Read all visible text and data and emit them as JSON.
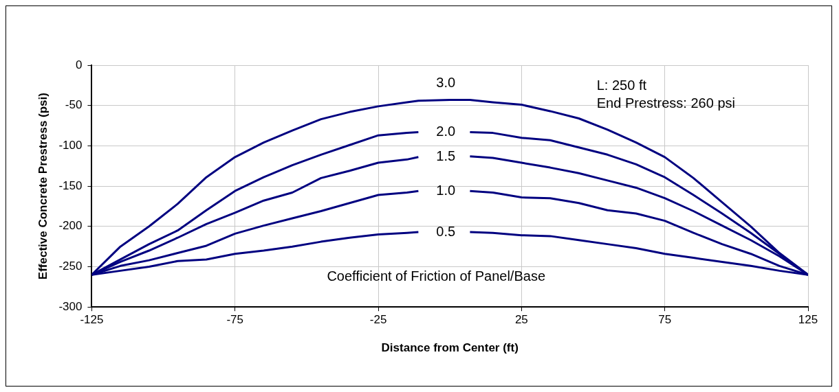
{
  "chart_data": {
    "type": "line",
    "xlabel": "Distance from Center (ft)",
    "ylabel": "Effective Concrete Prestress (psi)",
    "legend_title": "Coefficient of Friction of Panel/Base",
    "annotations": [
      "L: 250 ft",
      "End Prestress: 260 psi"
    ],
    "x": [
      -125,
      -115,
      -105,
      -95,
      -85,
      -75,
      -65,
      -55,
      -45,
      -35,
      -25,
      -15,
      -11,
      0,
      7,
      15,
      25,
      35,
      45,
      55,
      65,
      75,
      85,
      95,
      105,
      115,
      125
    ],
    "series": [
      {
        "name": "3.0",
        "color": "#000080",
        "values": [
          -260,
          -225,
          -200,
          -172,
          -139,
          -114,
          -96,
          -81,
          -67,
          -58,
          -51,
          -46,
          -44,
          -43,
          -43,
          -46,
          -49,
          -57,
          -66,
          -80,
          -96,
          -114,
          -140,
          -170,
          -200,
          -233,
          -260
        ]
      },
      {
        "name": "2.0",
        "color": "#000080",
        "values": [
          -260,
          -241,
          -222,
          -205,
          -180,
          -156,
          -139,
          -124,
          -111,
          -99,
          -87,
          -84,
          -83,
          null,
          -83,
          -84,
          -90,
          -93,
          -102,
          -111,
          -123,
          -139,
          -161,
          -184,
          -208,
          -234,
          -260
        ]
      },
      {
        "name": "1.5",
        "color": "#000080",
        "values": [
          -260,
          -244,
          -230,
          -214,
          -197,
          -183,
          -168,
          -158,
          -140,
          -131,
          -121,
          -117,
          -114,
          null,
          -113,
          -115,
          -121,
          -127,
          -134,
          -143,
          -152,
          -165,
          -181,
          -199,
          -217,
          -237,
          -260
        ]
      },
      {
        "name": "1.0",
        "color": "#000080",
        "values": [
          -260,
          -249,
          -242,
          -233,
          -224,
          -209,
          -199,
          -190,
          -181,
          -171,
          -161,
          -158,
          -156,
          null,
          -156,
          -158,
          -164,
          -165,
          -171,
          -180,
          -184,
          -193,
          -208,
          -222,
          -234,
          -249,
          -260
        ]
      },
      {
        "name": "0.5",
        "color": "#000080",
        "values": [
          -260,
          -255,
          -250,
          -243,
          -241,
          -234,
          -230,
          -225,
          -219,
          -214,
          -210,
          -208,
          -207,
          null,
          -207,
          -208,
          -211,
          -212,
          -217,
          -222,
          -227,
          -234,
          -239,
          -244,
          -249,
          -255,
          -260
        ]
      }
    ],
    "xlim": [
      -125,
      125
    ],
    "xticks": [
      -125,
      -75,
      -25,
      25,
      75,
      125
    ],
    "ylim": [
      -300,
      0
    ],
    "yticks": [
      -300,
      -250,
      -200,
      -150,
      -100,
      -50,
      0
    ],
    "grid": true,
    "legend": false,
    "marker": "none",
    "line_style": "solid"
  }
}
